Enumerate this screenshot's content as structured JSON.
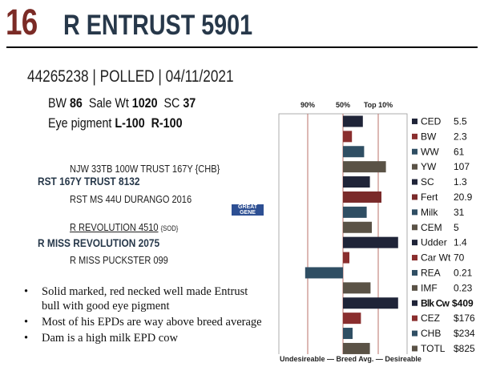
{
  "header": {
    "lot": "16",
    "name": "R ENTRUST 5901"
  },
  "animal": {
    "id_line": "44265238 | POLLED | 04/11/2021",
    "stats": [
      {
        "label": "BW",
        "value": "86"
      },
      {
        "label": "Sale Wt",
        "value": "1020"
      },
      {
        "label": "SC",
        "value": "37"
      }
    ],
    "eye_label": "Eye pigment",
    "eye_values": [
      "L-100",
      "R-100"
    ]
  },
  "pedigree": {
    "sire_sire": "NJW 33TB 100W TRUST 167Y {CHB}",
    "sire": "RST 167Y TRUST 8132",
    "sire_dam": "RST MS 44U DURANGO 2016",
    "dam_sire": "R REVOLUTION 4510",
    "dam_sire_tag": "{SOD}",
    "dam": "R MISS REVOLUTION 2075",
    "dam_dam": "R MISS PUCKSTER 099"
  },
  "logo_text": [
    "GREAT",
    "GENE"
  ],
  "notes": [
    "Solid marked, red necked well made Entrust bull with good eye pigment",
    "Most of his EPDs are way above breed average",
    "Dam is a high milk EPD cow"
  ],
  "chart_data": {
    "type": "bar",
    "orientation": "horizontal",
    "top_labels": [
      "90%",
      "50%",
      "Top 10%"
    ],
    "footer": "Undesireable — Breed Avg. — Desireable",
    "reference_lines": {
      "p90": -0.55,
      "p50": 0,
      "top10": 0.55
    },
    "xlim": [
      -1,
      1
    ],
    "traits": [
      {
        "label": "CED",
        "value": "5.5",
        "score": 0.31,
        "color": "#1f2438",
        "bold": false
      },
      {
        "label": "BW",
        "value": "2.3",
        "score": 0.14,
        "color": "#8a2e2e",
        "bold": false
      },
      {
        "label": "WW",
        "value": "61",
        "score": 0.33,
        "color": "#2f4e63",
        "bold": false
      },
      {
        "label": "YW",
        "value": "107",
        "score": 0.67,
        "color": "#5a5246",
        "bold": false
      },
      {
        "label": "SC",
        "value": "1.3",
        "score": 0.42,
        "color": "#1f2438",
        "bold": false
      },
      {
        "label": "Fert",
        "value": "20.9",
        "score": 0.6,
        "color": "#7a2a2a",
        "bold": false
      },
      {
        "label": "Milk",
        "value": "31",
        "score": 0.37,
        "color": "#2f4e63",
        "bold": false
      },
      {
        "label": "CEM",
        "value": "5",
        "score": 0.45,
        "color": "#5a5246",
        "bold": false
      },
      {
        "label": "Udder",
        "value": "1.4",
        "score": 0.86,
        "color": "#1f2438",
        "bold": false
      },
      {
        "label": "Car Wt",
        "value": "70",
        "score": 0.1,
        "color": "#8a2e2e",
        "bold": false
      },
      {
        "label": "REA",
        "value": "0.21",
        "score": -0.59,
        "color": "#2f4e63",
        "bold": false
      },
      {
        "label": "IMF",
        "value": "0.23",
        "score": 0.43,
        "color": "#5a5246",
        "bold": false
      },
      {
        "label": "Blk Cw",
        "value": "$409",
        "score": 0.86,
        "color": "#1f2438",
        "bold": true
      },
      {
        "label": "CEZ",
        "value": "$176",
        "score": 0.28,
        "color": "#8a2e2e",
        "bold": false
      },
      {
        "label": "CHB",
        "value": "$234",
        "score": 0.15,
        "color": "#2f4e63",
        "bold": false
      },
      {
        "label": "TOTL",
        "value": "$825",
        "score": 0.42,
        "color": "#5a5246",
        "bold": false
      }
    ]
  }
}
